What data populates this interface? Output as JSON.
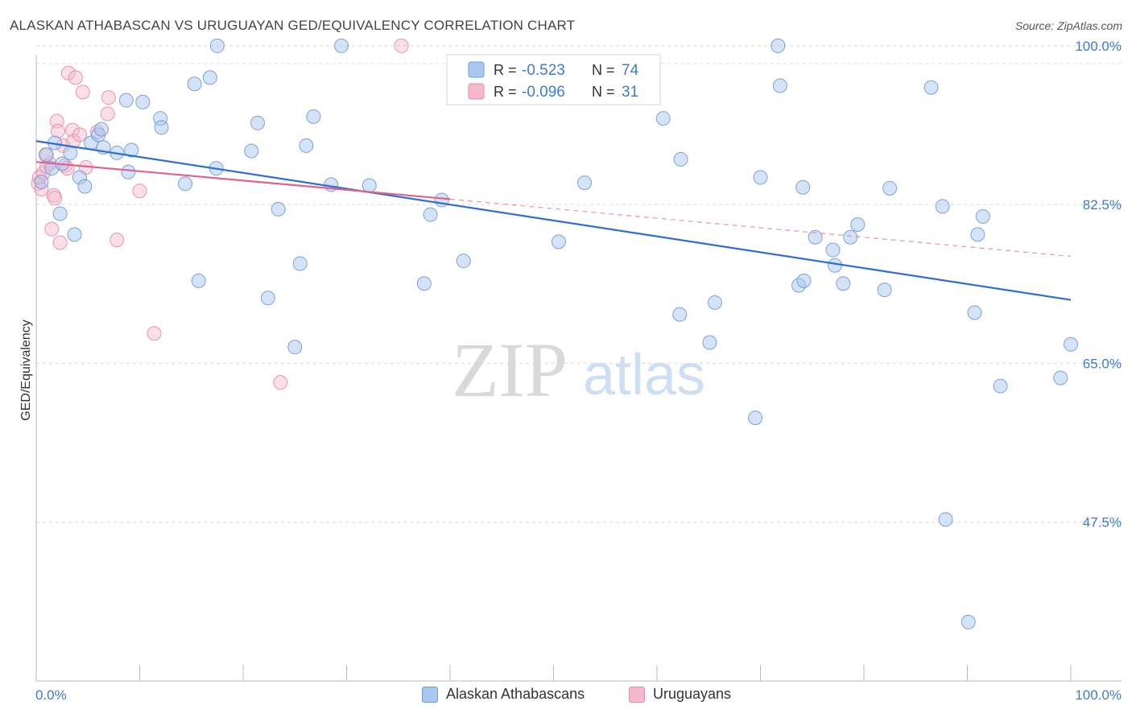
{
  "title": "ALASKAN ATHABASCAN VS URUGUAYAN GED/EQUIVALENCY CORRELATION CHART",
  "source": "Source: ZipAtlas.com",
  "watermark": {
    "zip": "ZIP",
    "atlas": "atlas"
  },
  "colors": {
    "blue_fill": "#a9c8f0",
    "blue_stroke": "#6f9ad6",
    "blue_line": "#2f6fd0",
    "pink_fill": "#f6b8cb",
    "pink_stroke": "#e88aa8",
    "pink_line": "#e0628d",
    "tick_label": "#3d7bd6",
    "grid": "#d8d8d8"
  },
  "stats": [
    {
      "r_label": "R =",
      "r_value": "-0.523",
      "n_label": "N =",
      "n_value": "74"
    },
    {
      "r_label": "R =",
      "r_value": "-0.096",
      "n_label": "N =",
      "n_value": "31"
    }
  ],
  "chart_data": {
    "type": "scatter",
    "title": "ALASKAN ATHABASCAN VS URUGUAYAN GED/EQUIVALENCY CORRELATION CHART",
    "xlabel": "",
    "ylabel": "GED/Equivalency",
    "xlim": [
      0,
      100
    ],
    "ylim": [
      30,
      101.5
    ],
    "x_tick_labels": [
      "0.0%",
      "100.0%"
    ],
    "y_ticks": [
      47.5,
      65.0,
      82.5,
      100.0
    ],
    "y_tick_labels": [
      "47.5%",
      "65.0%",
      "82.5%",
      "100.0%"
    ],
    "grid": true,
    "legend_position": "bottom-center",
    "series": [
      {
        "name": "Alaskan Athabascans",
        "color": "#a9c8f0",
        "trend": {
          "x": [
            0,
            100
          ],
          "y": [
            89.5,
            72.0
          ]
        },
        "points": [
          [
            0.5,
            85.0
          ],
          [
            1.0,
            88.0
          ],
          [
            1.5,
            86.5
          ],
          [
            1.8,
            89.3
          ],
          [
            2.3,
            81.5
          ],
          [
            2.5,
            87.0
          ],
          [
            3.3,
            88.2
          ],
          [
            3.7,
            79.2
          ],
          [
            4.2,
            85.5
          ],
          [
            4.7,
            84.5
          ],
          [
            5.3,
            89.3
          ],
          [
            6.0,
            90.2
          ],
          [
            6.3,
            90.8
          ],
          [
            6.5,
            88.8
          ],
          [
            7.8,
            88.2
          ],
          [
            8.7,
            94.0
          ],
          [
            8.9,
            86.1
          ],
          [
            9.2,
            88.5
          ],
          [
            10.3,
            93.8
          ],
          [
            12.0,
            92.0
          ],
          [
            12.1,
            91.0
          ],
          [
            14.4,
            84.8
          ],
          [
            15.3,
            95.8
          ],
          [
            15.7,
            74.1
          ],
          [
            16.8,
            96.5
          ],
          [
            17.4,
            86.5
          ],
          [
            17.5,
            100.0
          ],
          [
            20.8,
            88.4
          ],
          [
            21.4,
            91.5
          ],
          [
            22.4,
            72.2
          ],
          [
            23.4,
            82.0
          ],
          [
            25.0,
            66.8
          ],
          [
            25.5,
            76.0
          ],
          [
            26.1,
            89.0
          ],
          [
            26.8,
            92.2
          ],
          [
            28.5,
            84.7
          ],
          [
            29.5,
            100.0
          ],
          [
            32.2,
            84.6
          ],
          [
            37.5,
            73.8
          ],
          [
            38.1,
            81.4
          ],
          [
            39.2,
            83.0
          ],
          [
            41.3,
            76.3
          ],
          [
            50.5,
            78.4
          ],
          [
            53.0,
            84.9
          ],
          [
            60.6,
            92.0
          ],
          [
            62.2,
            70.4
          ],
          [
            62.3,
            87.5
          ],
          [
            65.1,
            67.3
          ],
          [
            65.6,
            71.7
          ],
          [
            69.5,
            59.0
          ],
          [
            70.0,
            85.5
          ],
          [
            71.7,
            100.0
          ],
          [
            71.9,
            95.6
          ],
          [
            73.7,
            73.6
          ],
          [
            74.1,
            84.4
          ],
          [
            74.2,
            74.1
          ],
          [
            75.3,
            78.9
          ],
          [
            77.0,
            77.5
          ],
          [
            77.2,
            75.8
          ],
          [
            78.0,
            73.8
          ],
          [
            78.7,
            78.9
          ],
          [
            79.4,
            80.3
          ],
          [
            82.0,
            73.1
          ],
          [
            82.5,
            84.3
          ],
          [
            86.5,
            95.4
          ],
          [
            87.6,
            82.3
          ],
          [
            87.9,
            47.8
          ],
          [
            90.1,
            36.5
          ],
          [
            90.7,
            70.6
          ],
          [
            91.0,
            79.2
          ],
          [
            91.5,
            81.2
          ],
          [
            93.2,
            62.5
          ],
          [
            99.0,
            63.4
          ],
          [
            100.0,
            67.1
          ]
        ]
      },
      {
        "name": "Uruguayans",
        "color": "#f6b8cb",
        "trend": {
          "x": [
            0,
            40
          ],
          "y": [
            87.2,
            83.1
          ]
        },
        "trend_ext": {
          "x": [
            40,
            100
          ],
          "y": [
            83.1,
            76.8
          ]
        },
        "points": [
          [
            0.2,
            84.8
          ],
          [
            0.3,
            85.5
          ],
          [
            0.5,
            84.2
          ],
          [
            0.7,
            86.0
          ],
          [
            0.9,
            88.0
          ],
          [
            1.3,
            87.0
          ],
          [
            1.5,
            79.8
          ],
          [
            1.7,
            83.5
          ],
          [
            1.8,
            83.2
          ],
          [
            2.0,
            91.7
          ],
          [
            2.1,
            90.6
          ],
          [
            2.3,
            78.3
          ],
          [
            2.6,
            89.0
          ],
          [
            2.8,
            86.8
          ],
          [
            3.0,
            86.5
          ],
          [
            3.1,
            97.0
          ],
          [
            3.5,
            90.7
          ],
          [
            3.6,
            89.5
          ],
          [
            3.8,
            96.5
          ],
          [
            4.2,
            90.2
          ],
          [
            4.5,
            94.9
          ],
          [
            4.8,
            86.6
          ],
          [
            5.9,
            90.5
          ],
          [
            6.9,
            92.5
          ],
          [
            7.0,
            94.3
          ],
          [
            7.8,
            78.6
          ],
          [
            10.0,
            84.0
          ],
          [
            11.4,
            68.3
          ],
          [
            23.6,
            62.9
          ],
          [
            35.3,
            100.0
          ],
          [
            1.0,
            86.7
          ]
        ]
      }
    ]
  }
}
